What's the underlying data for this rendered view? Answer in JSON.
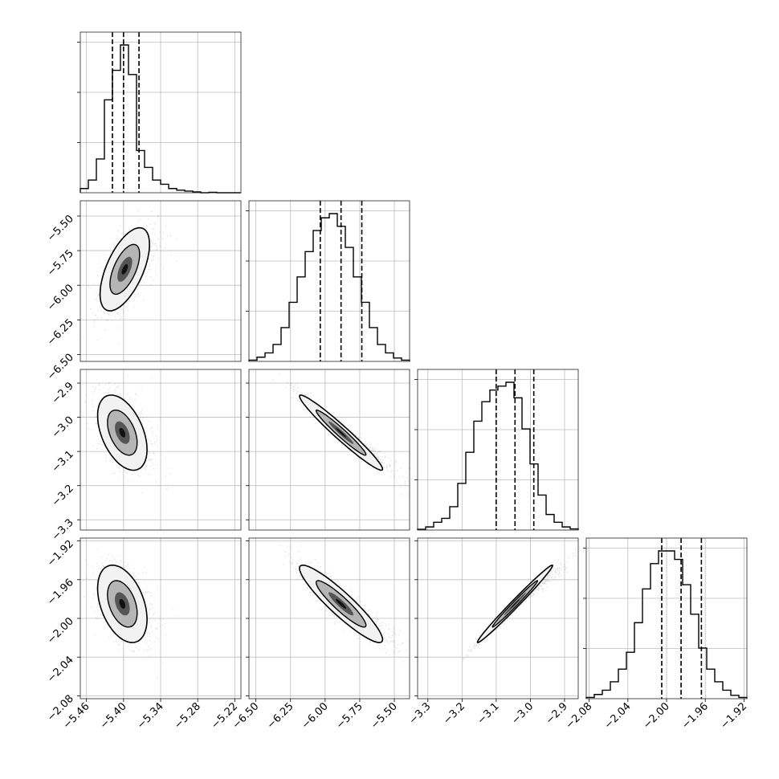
{
  "chart_data": {
    "type": "corner",
    "grid": true,
    "parameters": [
      {
        "range": [
          -5.47,
          -5.21
        ],
        "ticks": [
          "-5.46",
          "-5.40",
          "-5.34",
          "-5.28",
          "-5.22"
        ],
        "tick_values": [
          -5.46,
          -5.4,
          -5.34,
          -5.28,
          -5.22
        ],
        "quantiles": [
          -5.418,
          -5.4,
          -5.375
        ],
        "histogram": [
          1,
          3,
          8,
          22,
          29,
          35,
          28,
          10,
          6,
          3,
          2,
          1,
          0.6,
          0.4,
          0.2,
          0,
          0.1,
          0,
          0,
          0
        ]
      },
      {
        "range": [
          -6.55,
          -5.39
        ],
        "ticks": [
          "-6.50",
          "-6.25",
          "-6.00",
          "-5.75",
          "-5.50"
        ],
        "tick_values": [
          -6.5,
          -6.25,
          -6.0,
          -5.75,
          -5.5
        ],
        "quantiles": [
          -6.035,
          -5.885,
          -5.735
        ],
        "histogram": [
          0.3,
          1,
          2,
          4,
          8,
          14,
          20,
          26,
          31,
          34,
          35,
          32,
          27,
          20,
          14,
          8,
          4,
          2,
          0.8,
          0.3
        ]
      },
      {
        "range": [
          -3.33,
          -2.86
        ],
        "ticks": [
          "-3.3",
          "-3.2",
          "-3.1",
          "-3.0",
          "-2.9"
        ],
        "tick_values": [
          -3.3,
          -3.2,
          -3.1,
          -3.0,
          -2.9
        ],
        "quantiles": [
          -3.1,
          -3.045,
          -2.99
        ],
        "histogram": [
          0.2,
          0.8,
          2,
          3,
          6,
          12,
          20,
          28,
          33,
          36,
          37,
          38,
          34,
          26,
          17,
          9,
          4,
          2,
          0.8,
          0.3
        ]
      },
      {
        "range": [
          -2.083,
          -1.917
        ],
        "ticks": [
          "-2.08",
          "-2.04",
          "-2.00",
          "-1.96",
          "-1.92"
        ],
        "tick_values": [
          -2.08,
          -2.04,
          -2.0,
          -1.96,
          -1.92
        ],
        "quantiles": [
          -2.005,
          -1.985,
          -1.964
        ],
        "histogram": [
          0.3,
          1,
          2,
          4,
          7,
          11,
          18,
          26,
          32,
          35,
          35,
          33,
          27,
          20,
          12,
          7,
          4,
          2,
          0.8,
          0.3
        ]
      }
    ],
    "pairs": [
      {
        "row": 1,
        "col": 0,
        "center": [
          -5.398,
          -5.885
        ],
        "sigma": [
          0.02,
          0.15
        ],
        "correlation": 0.6
      },
      {
        "row": 2,
        "col": 0,
        "center": [
          -5.402,
          -3.045
        ],
        "sigma": [
          0.02,
          0.055
        ],
        "correlation": -0.45
      },
      {
        "row": 2,
        "col": 1,
        "center": [
          -5.885,
          -3.045
        ],
        "sigma": [
          0.15,
          0.055
        ],
        "correlation": -0.97
      },
      {
        "row": 3,
        "col": 0,
        "center": [
          -5.402,
          -1.985
        ],
        "sigma": [
          0.02,
          0.02
        ],
        "correlation": -0.4
      },
      {
        "row": 3,
        "col": 1,
        "center": [
          -5.885,
          -1.985
        ],
        "sigma": [
          0.15,
          0.02
        ],
        "correlation": -0.92
      },
      {
        "row": 3,
        "col": 2,
        "center": [
          -3.045,
          -1.985
        ],
        "sigma": [
          0.055,
          0.02
        ],
        "correlation": 0.99
      }
    ]
  }
}
